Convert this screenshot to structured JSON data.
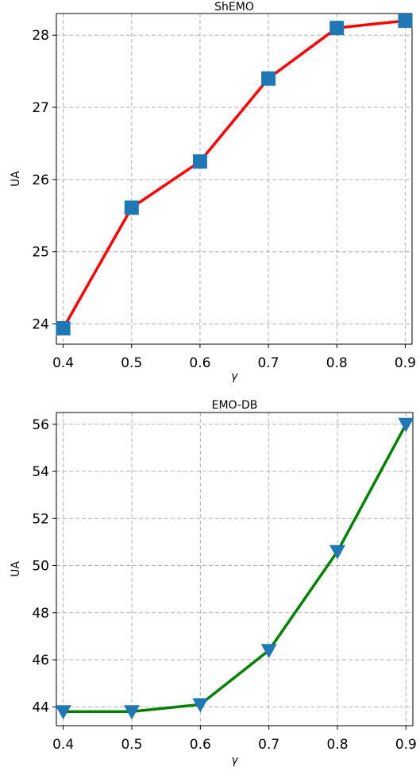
{
  "chart_data": [
    {
      "type": "line",
      "title": "ShEMO",
      "xlabel": "γ",
      "ylabel": "UA",
      "x": [
        0.4,
        0.5,
        0.6,
        0.7,
        0.8,
        0.9
      ],
      "xticks": [
        "0.4",
        "0.5",
        "0.6",
        "0.7",
        "0.8",
        "0.9"
      ],
      "xlim": [
        0.39,
        0.91
      ],
      "ylim": [
        23.72,
        28.3
      ],
      "yticks": [
        24,
        25,
        26,
        27,
        28
      ],
      "ytick_labels": [
        "24",
        "25",
        "26",
        "27",
        "28"
      ],
      "grid": true,
      "series": [
        {
          "values": [
            23.94,
            25.61,
            26.25,
            27.4,
            28.1,
            28.2
          ],
          "line_color": "#ff0000",
          "marker_color": "#1f77b4",
          "marker": "square"
        }
      ]
    },
    {
      "type": "line",
      "title": "EMO-DB",
      "xlabel": "γ",
      "ylabel": "UA",
      "x": [
        0.4,
        0.5,
        0.6,
        0.7,
        0.8,
        0.9
      ],
      "xticks": [
        "0.4",
        "0.5",
        "0.6",
        "0.7",
        "0.8",
        "0.9"
      ],
      "xlim": [
        0.39,
        0.91
      ],
      "ylim": [
        43.2,
        56.5
      ],
      "yticks": [
        44,
        46,
        48,
        50,
        52,
        54,
        56
      ],
      "ytick_labels": [
        "44",
        "46",
        "48",
        "50",
        "52",
        "54",
        "56"
      ],
      "grid": true,
      "series": [
        {
          "values": [
            43.8,
            43.8,
            44.1,
            46.4,
            50.6,
            56.0
          ],
          "line_color": "#008000",
          "marker_color": "#1f77b4",
          "marker": "triangle-down"
        }
      ]
    }
  ]
}
